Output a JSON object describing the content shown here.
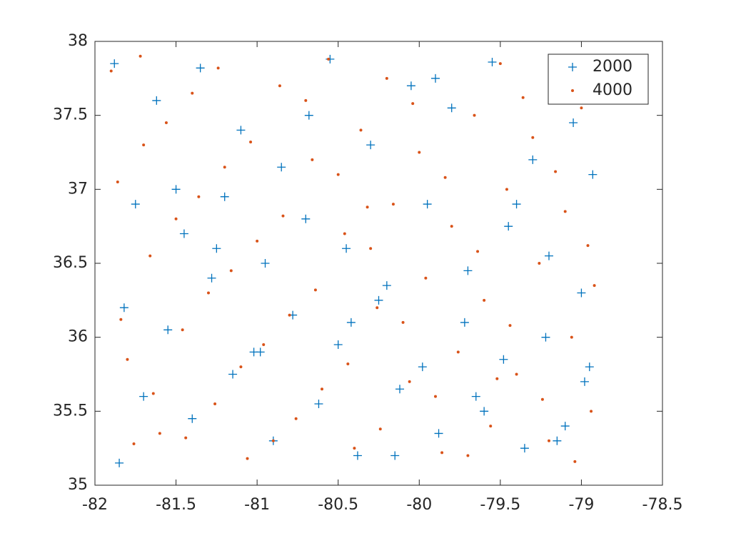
{
  "chart_data": {
    "type": "scatter",
    "xlim": [
      -82,
      -78.5
    ],
    "xticks": [
      -82,
      -81.5,
      -81,
      -80.5,
      -80,
      -79.5,
      -79,
      -78.5
    ],
    "ylim": [
      35,
      38
    ],
    "yticks": [
      35,
      35.5,
      36,
      36.5,
      37,
      37.5,
      38
    ],
    "grid": false,
    "legend": "northeast",
    "series": [
      {
        "name": "2000",
        "color": "#0072bd",
        "marker": "plus",
        "x": [
          -81.88,
          -81.62,
          -81.35,
          -81.1,
          -80.85,
          -80.55,
          -80.3,
          -80.05,
          -79.8,
          -79.55,
          -79.3,
          -79.05,
          -78.93,
          -81.75,
          -81.45,
          -81.2,
          -80.95,
          -80.7,
          -80.45,
          -80.2,
          -79.95,
          -79.7,
          -79.45,
          -79.2,
          -79.0,
          -81.82,
          -81.55,
          -81.28,
          -81.02,
          -80.78,
          -80.5,
          -80.25,
          -79.98,
          -79.72,
          -79.48,
          -79.22,
          -78.98,
          -81.7,
          -81.4,
          -81.15,
          -80.9,
          -80.62,
          -80.38,
          -80.12,
          -79.88,
          -79.6,
          -79.35,
          -79.1,
          -81.85,
          -81.5,
          -81.25,
          -80.98,
          -80.68,
          -80.42,
          -80.15,
          -79.9,
          -79.65,
          -79.4,
          -79.15,
          -78.95
        ],
        "values": [
          37.85,
          37.6,
          37.82,
          37.4,
          37.15,
          37.88,
          37.3,
          37.7,
          37.55,
          37.86,
          37.2,
          37.45,
          37.1,
          36.9,
          36.7,
          36.95,
          36.5,
          36.8,
          36.6,
          36.35,
          36.9,
          36.45,
          36.75,
          36.55,
          36.3,
          36.2,
          36.05,
          36.4,
          35.9,
          36.15,
          35.95,
          36.25,
          35.8,
          36.1,
          35.85,
          36.0,
          35.7,
          35.6,
          35.45,
          35.75,
          35.3,
          35.55,
          35.2,
          35.65,
          35.35,
          35.5,
          35.25,
          35.4,
          35.15,
          37.0,
          36.6,
          35.9,
          37.5,
          36.1,
          35.2,
          37.75,
          35.6,
          36.9,
          35.3,
          35.8
        ]
      },
      {
        "name": "4000",
        "color": "#d95319",
        "marker": "dot",
        "x": [
          -81.9,
          -81.7,
          -81.5,
          -81.3,
          -81.1,
          -80.9,
          -80.7,
          -80.5,
          -80.3,
          -80.1,
          -79.9,
          -79.7,
          -79.5,
          -79.3,
          -79.1,
          -78.92,
          -81.8,
          -81.6,
          -81.4,
          -81.2,
          -81.0,
          -80.8,
          -80.6,
          -80.4,
          -80.2,
          -80.0,
          -79.8,
          -79.6,
          -79.4,
          -79.2,
          -79.0,
          -81.86,
          -81.66,
          -81.46,
          -81.26,
          -81.06,
          -80.86,
          -80.66,
          -80.46,
          -80.26,
          -80.06,
          -79.86,
          -79.66,
          -79.46,
          -79.26,
          -79.06,
          -78.94,
          -81.76,
          -81.56,
          -81.36,
          -81.16,
          -80.96,
          -80.76,
          -80.56,
          -80.36,
          -80.16,
          -79.96,
          -79.76,
          -79.56,
          -79.36,
          -79.16,
          -78.96,
          -81.84,
          -81.64,
          -81.44,
          -81.24,
          -81.04,
          -80.84,
          -80.64,
          -80.44,
          -80.24,
          -80.04,
          -79.84,
          -79.64,
          -79.44,
          -79.24,
          -79.04,
          -81.72,
          -80.32,
          -79.52
        ],
        "values": [
          37.8,
          37.3,
          36.8,
          36.3,
          35.8,
          35.3,
          37.6,
          37.1,
          36.6,
          36.1,
          35.6,
          35.2,
          37.85,
          37.35,
          36.85,
          36.35,
          35.85,
          35.35,
          37.65,
          37.15,
          36.65,
          36.15,
          35.65,
          35.25,
          37.75,
          37.25,
          36.75,
          36.25,
          35.75,
          35.3,
          37.55,
          37.05,
          36.55,
          36.05,
          35.55,
          35.18,
          37.7,
          37.2,
          36.7,
          36.2,
          35.7,
          35.22,
          37.5,
          37.0,
          36.5,
          36.0,
          35.5,
          35.28,
          37.45,
          36.95,
          36.45,
          35.95,
          35.45,
          37.88,
          37.4,
          36.9,
          36.4,
          35.9,
          35.4,
          37.62,
          37.12,
          36.62,
          36.12,
          35.62,
          35.32,
          37.82,
          37.32,
          36.82,
          36.32,
          35.82,
          35.38,
          37.58,
          37.08,
          36.58,
          36.08,
          35.58,
          35.16,
          37.9,
          36.88,
          35.72
        ]
      }
    ]
  }
}
